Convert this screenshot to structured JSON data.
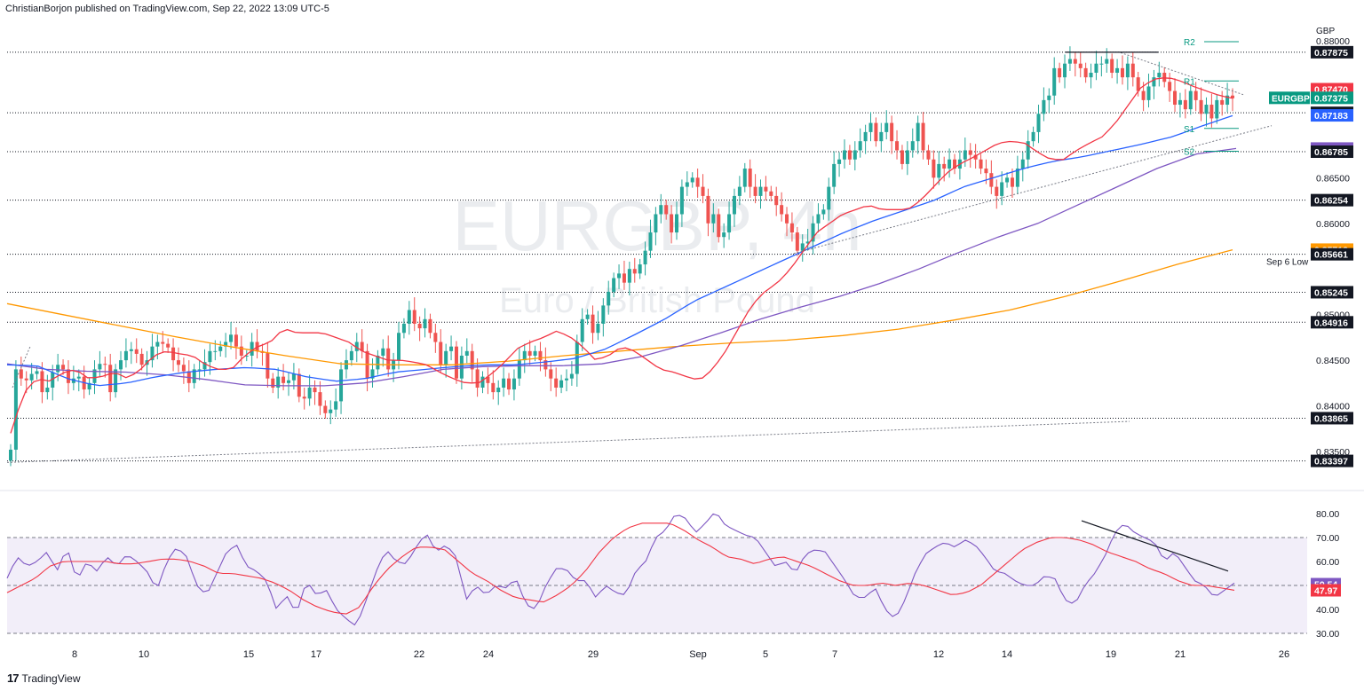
{
  "header": {
    "publisher_line": "ChristianBorjon published on TradingView.com, Sep 22, 2022 13:09 UTC-5"
  },
  "footer": {
    "brand": "TradingView",
    "logo_glyph": "17"
  },
  "watermark": {
    "symbol": "EURGBP, 4h",
    "name": "Euro / British Pound"
  },
  "colors": {
    "up": "#26a69a",
    "down": "#ef5350",
    "sma20": "#f23645",
    "sma50": "#2962ff",
    "sma100": "#7e57c2",
    "sma200": "#ff9800",
    "rsi": "#7e57c2",
    "rsi_ma": "#f23645",
    "pivot": "#089981",
    "label_dark": "#131722",
    "eurgbp_tag": "#089981",
    "tag_red": "#f23645",
    "tag_blue": "#2962ff",
    "tag_purple": "#7e57c2",
    "tag_orange": "#ff9800"
  },
  "chart_data": [
    {
      "type": "candlestick",
      "pane": "price",
      "currency_label": "GBP",
      "ylim": [
        0.833,
        0.8815
      ],
      "yticks": [
        "0.88000",
        "0.87875",
        "0.87470",
        "0.87375",
        "0.87211",
        "0.87183",
        "0.86820",
        "0.86785",
        "0.86500",
        "0.86254",
        "0.86000",
        "0.85712",
        "0.85661",
        "0.85245",
        "0.85000",
        "0.84916",
        "0.84500",
        "0.84000",
        "0.83865",
        "0.83500",
        "0.83397"
      ],
      "price_tags": [
        {
          "value": "0.87875",
          "style": "dark"
        },
        {
          "value": "0.87470",
          "style": "red"
        },
        {
          "value": "0.87375",
          "style": "teal",
          "prefix": "EURGBP"
        },
        {
          "value": "0.87211",
          "style": "dark"
        },
        {
          "value": "0.87183",
          "style": "blue"
        },
        {
          "value": "0.86820",
          "style": "purple"
        },
        {
          "value": "0.86785",
          "style": "dark"
        },
        {
          "value": "0.86254",
          "style": "dark"
        },
        {
          "value": "0.85712",
          "style": "orange"
        },
        {
          "value": "0.85661",
          "style": "dark",
          "prefix": "Sep 6 Low"
        },
        {
          "value": "0.85245",
          "style": "dark"
        },
        {
          "value": "0.84916",
          "style": "dark"
        },
        {
          "value": "0.83865",
          "style": "dark"
        },
        {
          "value": "0.83397",
          "style": "dark"
        }
      ],
      "horizontal_levels": [
        0.87875,
        0.87211,
        0.86785,
        0.86254,
        0.85661,
        0.85245,
        0.84916,
        0.83865,
        0.83397
      ],
      "pivots": [
        {
          "name": "R2",
          "value": 0.8799
        },
        {
          "name": "R1",
          "value": 0.8756
        },
        {
          "name": "S1",
          "value": 0.8704
        },
        {
          "name": "S2",
          "value": 0.8679
        }
      ],
      "x_ticks": [
        "8",
        "10",
        "15",
        "17",
        "22",
        "24",
        "29",
        "Sep",
        "5",
        "7",
        "12",
        "14",
        "19",
        "21",
        "26"
      ],
      "moving_averages": [
        {
          "period": 20,
          "color": "#f23645"
        },
        {
          "period": 50,
          "color": "#2962ff"
        },
        {
          "period": 100,
          "color": "#7e57c2"
        },
        {
          "period": 200,
          "color": "#ff9800"
        }
      ],
      "candles_close": [
        0.8352,
        0.844,
        0.843,
        0.8428,
        0.8435,
        0.8438,
        0.8415,
        0.842,
        0.8437,
        0.8445,
        0.844,
        0.8425,
        0.843,
        0.8432,
        0.8418,
        0.8425,
        0.844,
        0.8446,
        0.8445,
        0.8415,
        0.844,
        0.845,
        0.846,
        0.8462,
        0.8457,
        0.8445,
        0.845,
        0.8465,
        0.847,
        0.8468,
        0.8464,
        0.845,
        0.8445,
        0.8438,
        0.8425,
        0.844,
        0.844,
        0.8448,
        0.846,
        0.846,
        0.8465,
        0.847,
        0.8478,
        0.8465,
        0.8455,
        0.8455,
        0.847,
        0.846,
        0.8458,
        0.843,
        0.842,
        0.8432,
        0.8425,
        0.8428,
        0.8435,
        0.841,
        0.8408,
        0.842,
        0.8415,
        0.84,
        0.8392,
        0.8396,
        0.8405,
        0.844,
        0.845,
        0.846,
        0.847,
        0.846,
        0.843,
        0.844,
        0.8455,
        0.8463,
        0.844,
        0.845,
        0.848,
        0.849,
        0.8505,
        0.849,
        0.8485,
        0.8495,
        0.848,
        0.847,
        0.8445,
        0.846,
        0.8465,
        0.843,
        0.8455,
        0.846,
        0.844,
        0.842,
        0.8432,
        0.8425,
        0.8415,
        0.842,
        0.843,
        0.8418,
        0.843,
        0.845,
        0.846,
        0.8455,
        0.846,
        0.845,
        0.844,
        0.843,
        0.842,
        0.8428,
        0.843,
        0.8435,
        0.847,
        0.8495,
        0.85,
        0.848,
        0.849,
        0.851,
        0.8525,
        0.854,
        0.8545,
        0.8535,
        0.855,
        0.8545,
        0.8555,
        0.857,
        0.859,
        0.861,
        0.862,
        0.861,
        0.859,
        0.861,
        0.864,
        0.8645,
        0.865,
        0.864,
        0.863,
        0.86,
        0.861,
        0.8585,
        0.859,
        0.861,
        0.863,
        0.864,
        0.866,
        0.864,
        0.863,
        0.864,
        0.8635,
        0.863,
        0.862,
        0.861,
        0.86,
        0.859,
        0.857,
        0.8578,
        0.858,
        0.86,
        0.861,
        0.8615,
        0.864,
        0.8665,
        0.867,
        0.868,
        0.867,
        0.868,
        0.869,
        0.87,
        0.871,
        0.869,
        0.87,
        0.871,
        0.869,
        0.868,
        0.8665,
        0.868,
        0.869,
        0.871,
        0.868,
        0.867,
        0.865,
        0.8665,
        0.866,
        0.867,
        0.866,
        0.867,
        0.868,
        0.8675,
        0.867,
        0.866,
        0.8655,
        0.864,
        0.863,
        0.8645,
        0.865,
        0.864,
        0.866,
        0.867,
        0.869,
        0.87,
        0.872,
        0.8735,
        0.874,
        0.877,
        0.876,
        0.8775,
        0.878,
        0.8775,
        0.877,
        0.876,
        0.8765,
        0.8775,
        0.8775,
        0.878,
        0.8765,
        0.877,
        0.876,
        0.8775,
        0.876,
        0.8745,
        0.8735,
        0.875,
        0.876,
        0.8765,
        0.8755,
        0.8745,
        0.873,
        0.8735,
        0.8725,
        0.8745,
        0.8735,
        0.872,
        0.873,
        0.8715,
        0.8735,
        0.873,
        0.874,
        0.8737
      ],
      "sma20_anchor": [
        0.837,
        0.8414,
        0.843,
        0.8427,
        0.8436,
        0.844,
        0.843,
        0.8432,
        0.8437,
        0.843,
        0.844,
        0.8455,
        0.846,
        0.8457,
        0.8455,
        0.8445,
        0.844,
        0.844,
        0.8455,
        0.8465,
        0.847,
        0.8485,
        0.848,
        0.848,
        0.848,
        0.8475,
        0.847,
        0.846,
        0.8455,
        0.845,
        0.845,
        0.8448,
        0.8445,
        0.8437,
        0.843,
        0.8425,
        0.8425,
        0.8435,
        0.8448,
        0.8463,
        0.847,
        0.8475,
        0.8482,
        0.8476,
        0.8465,
        0.845,
        0.8455,
        0.8465,
        0.846,
        0.845,
        0.844,
        0.8437,
        0.8432,
        0.8428,
        0.844,
        0.846,
        0.8485,
        0.851,
        0.8525,
        0.8535,
        0.855,
        0.857,
        0.859,
        0.86,
        0.861,
        0.8615,
        0.862,
        0.8615,
        0.8615,
        0.8615,
        0.8625,
        0.864,
        0.8655,
        0.8665,
        0.8672,
        0.868,
        0.8688,
        0.869,
        0.8688,
        0.8678,
        0.867,
        0.867,
        0.868,
        0.8688,
        0.8695,
        0.871,
        0.873,
        0.875,
        0.8758,
        0.876,
        0.8756,
        0.875,
        0.8745,
        0.874,
        0.8737
      ],
      "sma50_anchor": [
        0.8445,
        0.8444,
        0.843,
        0.8422,
        0.8425,
        0.8432,
        0.8437,
        0.844,
        0.8442,
        0.844,
        0.8432,
        0.8427,
        0.843,
        0.8437,
        0.844,
        0.8443,
        0.8445,
        0.8445,
        0.8448,
        0.8452,
        0.8462,
        0.8478,
        0.8495,
        0.8515,
        0.853,
        0.8545,
        0.856,
        0.8575,
        0.859,
        0.8603,
        0.8614,
        0.8625,
        0.864,
        0.865,
        0.866,
        0.8668,
        0.8673,
        0.868,
        0.8687,
        0.8695,
        0.8707,
        0.8718
      ],
      "sma100_anchor": [
        0.8446,
        0.844,
        0.8438,
        0.8437,
        0.8434,
        0.8429,
        0.8423,
        0.8422,
        0.8422,
        0.8425,
        0.8432,
        0.844,
        0.8443,
        0.8444,
        0.8444,
        0.8446,
        0.8454,
        0.8466,
        0.848,
        0.8495,
        0.8508,
        0.852,
        0.8534,
        0.855,
        0.8568,
        0.8585,
        0.86,
        0.862,
        0.864,
        0.866,
        0.8676,
        0.8682
      ],
      "sma200_anchor": [
        0.8512,
        0.85,
        0.8488,
        0.8476,
        0.8465,
        0.8455,
        0.8446,
        0.8445,
        0.8445,
        0.8449,
        0.8455,
        0.846,
        0.8465,
        0.8469,
        0.8472,
        0.8477,
        0.8484,
        0.8494,
        0.8505,
        0.852,
        0.8537,
        0.8555,
        0.8571
      ]
    },
    {
      "type": "line",
      "pane": "rsi",
      "ylim": [
        28,
        84
      ],
      "yticks": [
        "80.00",
        "70.00",
        "60.00",
        "50.00",
        "40.00",
        "30.00"
      ],
      "band": [
        30,
        70
      ],
      "mid": 50,
      "values_tags": [
        {
          "value": "50.54",
          "style": "purple"
        },
        {
          "value": "47.97",
          "style": "red"
        }
      ],
      "rsi_anchor": [
        53,
        62,
        58,
        60,
        64,
        56,
        66,
        52,
        60,
        56,
        62,
        58,
        63,
        60,
        56,
        48,
        60,
        66,
        62,
        50,
        46,
        55,
        64,
        67,
        58,
        56,
        52,
        40,
        46,
        38,
        52,
        46,
        48,
        40,
        36,
        33,
        44,
        56,
        65,
        60,
        59,
        66,
        72,
        64,
        67,
        62,
        44,
        50,
        46,
        50,
        49,
        53,
        42,
        40,
        50,
        57,
        57,
        52,
        52,
        45,
        50,
        47,
        46,
        56,
        60,
        70,
        73,
        80,
        78,
        72,
        76,
        81,
        75,
        73,
        71,
        70,
        64,
        58,
        60,
        55,
        63,
        65,
        64,
        58,
        52,
        45,
        45,
        49,
        40,
        36,
        44,
        55,
        63,
        66,
        68,
        66,
        69,
        67,
        62,
        56,
        55,
        52,
        50,
        50,
        54,
        53,
        44,
        42,
        50,
        55,
        62,
        72,
        76,
        72,
        70,
        68,
        60,
        64,
        58,
        52,
        50,
        45,
        48,
        51
      ],
      "rsi_ma_anchor": [
        47,
        50,
        53,
        58,
        60,
        60,
        60,
        60,
        59,
        59,
        60,
        61,
        61,
        60,
        58,
        55,
        55,
        54,
        53,
        51,
        48,
        44,
        41,
        39,
        38,
        41,
        50,
        57,
        62,
        66,
        66,
        65,
        60,
        55,
        52,
        48,
        45,
        44,
        43,
        46,
        50,
        56,
        64,
        70,
        74,
        76,
        76,
        76,
        73,
        69,
        66,
        62,
        61,
        59,
        61,
        62,
        60,
        58,
        55,
        52,
        50,
        50,
        51,
        50,
        51,
        50,
        48,
        46,
        47,
        50,
        55,
        60,
        65,
        68,
        70,
        70,
        69,
        67,
        64,
        62,
        60,
        57,
        55,
        52,
        50,
        50,
        49,
        48
      ],
      "trendline_label": ""
    }
  ]
}
